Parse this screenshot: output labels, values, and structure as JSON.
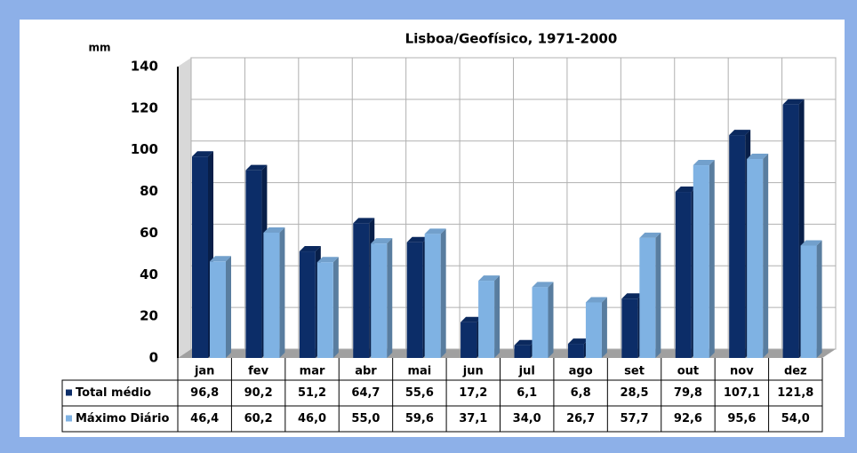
{
  "chart_data": {
    "type": "bar",
    "title": "Lisboa/Geofísico, 1971-2000",
    "y_label": "mm",
    "categories": [
      "jan",
      "fev",
      "mar",
      "abr",
      "mai",
      "jun",
      "jul",
      "ago",
      "set",
      "out",
      "nov",
      "dez"
    ],
    "series": [
      {
        "name": "Total médio",
        "color": "#0c2d68",
        "values": [
          96.8,
          90.2,
          51.2,
          64.7,
          55.6,
          17.2,
          6.1,
          6.8,
          28.5,
          79.8,
          107.1,
          121.8
        ],
        "value_labels": [
          "96,8",
          "90,2",
          "51,2",
          "64,7",
          "55,6",
          "17,2",
          "6,1",
          "6,8",
          "28,5",
          "79,8",
          "107,1",
          "121,8"
        ]
      },
      {
        "name": "Máximo Diário",
        "color": "#7fb2e3",
        "values": [
          46.4,
          60.2,
          46.0,
          55.0,
          59.6,
          37.1,
          34.0,
          26.7,
          57.7,
          92.6,
          95.6,
          54.0
        ],
        "value_labels": [
          "46,4",
          "60,2",
          "46,0",
          "55,0",
          "59,6",
          "37,1",
          "34,0",
          "26,7",
          "57,7",
          "92,6",
          "95,6",
          "54,0"
        ]
      }
    ],
    "ylim": [
      0,
      140
    ],
    "yticks": [
      0,
      20,
      40,
      60,
      80,
      100,
      120,
      140
    ],
    "grid": true
  }
}
